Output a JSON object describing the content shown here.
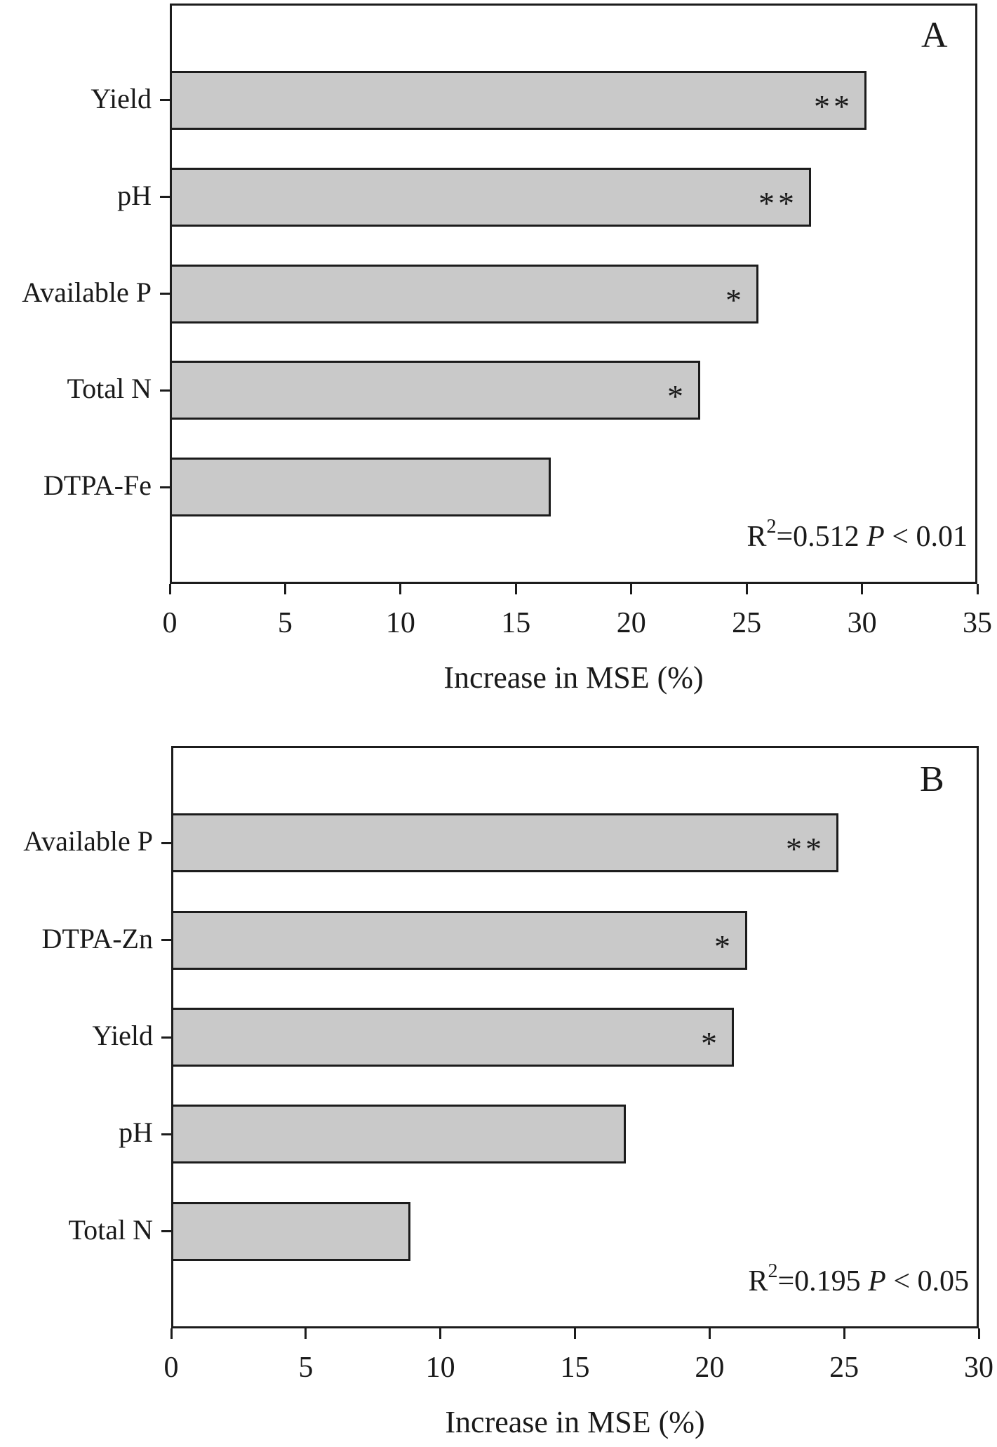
{
  "style": {
    "bar_fill": "#c9c9c9",
    "line_color": "#1c1c1c",
    "text_color": "#1a1a1a",
    "background": "#ffffff"
  },
  "chart_data": [
    {
      "type": "bar",
      "orientation": "horizontal",
      "panel_label": "A",
      "xlabel": "Increase in MSE (%)",
      "categories": [
        "Yield",
        "pH",
        "Available P",
        "Total N",
        "DTPA-Fe"
      ],
      "values": [
        30.2,
        27.8,
        25.5,
        23.0,
        16.5
      ],
      "significance": [
        "**",
        "**",
        "*",
        "*",
        ""
      ],
      "xlim": [
        0,
        35
      ],
      "xticks": [
        0,
        5,
        10,
        15,
        20,
        25,
        30,
        35
      ],
      "grid": false,
      "legend": null,
      "annotation": {
        "r_label": "R",
        "r_exponent": "2",
        "r_value": "=0.512",
        "p_label": "P",
        "p_value": " < 0.01"
      }
    },
    {
      "type": "bar",
      "orientation": "horizontal",
      "panel_label": "B",
      "xlabel": "Increase in MSE (%)",
      "categories": [
        "Available P",
        "DTPA-Zn",
        "Yield",
        "pH",
        "Total N"
      ],
      "values": [
        24.8,
        21.4,
        20.9,
        16.9,
        8.9
      ],
      "significance": [
        "**",
        "*",
        "*",
        "",
        ""
      ],
      "xlim": [
        0,
        30
      ],
      "xticks": [
        0,
        5,
        10,
        15,
        20,
        25,
        30
      ],
      "grid": false,
      "legend": null,
      "annotation": {
        "r_label": "R",
        "r_exponent": "2",
        "r_value": "=0.195",
        "p_label": "P",
        "p_value": " < 0.05"
      }
    }
  ]
}
